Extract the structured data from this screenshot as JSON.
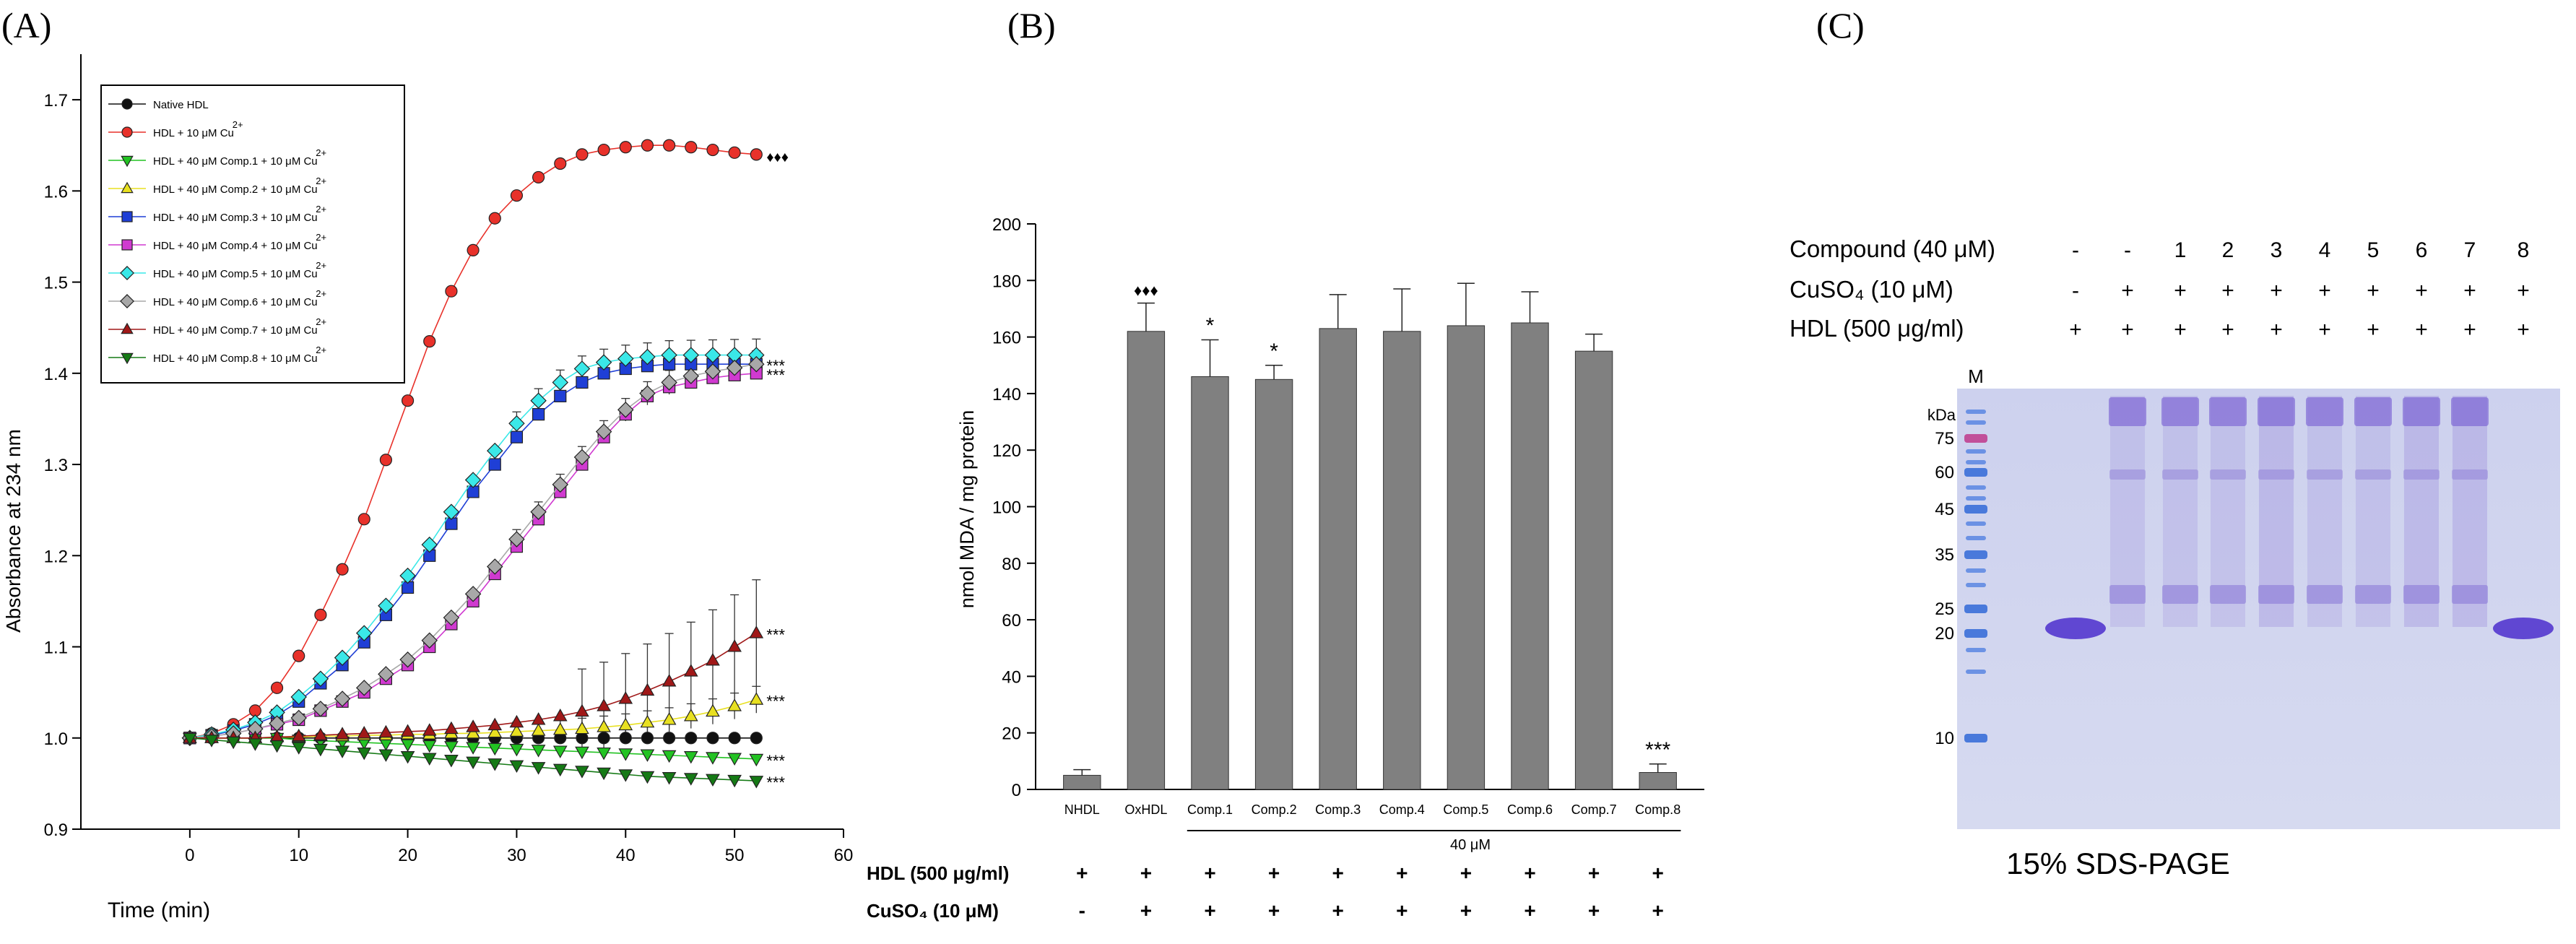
{
  "panels": [
    {
      "label": "(A)"
    },
    {
      "label": "(B)"
    },
    {
      "label": "(C)"
    }
  ],
  "chart_data": [
    {
      "type": "line",
      "panel": "(A)",
      "xlabel": "Time (min)",
      "ylabel": "Absorbance at 234 nm",
      "xlim": [
        -10,
        60
      ],
      "ylim": [
        0.9,
        1.75
      ],
      "xticks": [
        0,
        10,
        20,
        30,
        40,
        50,
        60
      ],
      "yticks": [
        0.9,
        1.0,
        1.1,
        1.2,
        1.3,
        1.4,
        1.5,
        1.6,
        1.7
      ],
      "x": [
        0,
        2,
        4,
        6,
        8,
        10,
        12,
        14,
        16,
        18,
        20,
        22,
        24,
        26,
        28,
        30,
        32,
        34,
        36,
        38,
        40,
        42,
        44,
        46,
        48,
        50,
        52
      ],
      "legend_position": "top-left",
      "series": [
        {
          "name": "Native HDL",
          "legend_sup": "",
          "color": "#111111",
          "marker": "circle",
          "values": [
            1.0,
            1.0,
            1.0,
            1.0,
            1.0,
            1.0,
            1.0,
            1.0,
            1.0,
            1.0,
            1.0,
            1.0,
            1.0,
            1.0,
            1.0,
            1.0,
            1.0,
            1.0,
            1.0,
            1.0,
            1.0,
            1.0,
            1.0,
            1.0,
            1.0,
            1.0,
            1.0
          ]
        },
        {
          "name": "HDL + 10 μM Cu",
          "legend_sup": "2+",
          "color": "#e8312a",
          "marker": "circle",
          "end_label": "♦♦♦",
          "values": [
            1.0,
            1.005,
            1.015,
            1.03,
            1.055,
            1.09,
            1.135,
            1.185,
            1.24,
            1.305,
            1.37,
            1.435,
            1.49,
            1.535,
            1.57,
            1.595,
            1.615,
            1.63,
            1.64,
            1.645,
            1.648,
            1.65,
            1.65,
            1.648,
            1.645,
            1.642,
            1.64
          ]
        },
        {
          "name": "HDL + 40 μM Comp.1 + 10 μM Cu",
          "legend_sup": "2+",
          "color": "#22c322",
          "marker": "triangle-down",
          "end_label": "***",
          "values": [
            1.0,
            1.0,
            1.0,
            1.0,
            1.0,
            0.998,
            0.997,
            0.996,
            0.995,
            0.994,
            0.993,
            0.992,
            0.991,
            0.99,
            0.989,
            0.988,
            0.987,
            0.986,
            0.985,
            0.984,
            0.983,
            0.982,
            0.981,
            0.98,
            0.979,
            0.978,
            0.977
          ]
        },
        {
          "name": "HDL + 40 μM Comp.2 + 10 μM Cu",
          "legend_sup": "2+",
          "color": "#e8e020",
          "marker": "triangle",
          "end_label": "***",
          "values": [
            1.0,
            1.0,
            1.0,
            1.0,
            1.001,
            1.001,
            1.002,
            1.002,
            1.003,
            1.003,
            1.004,
            1.004,
            1.005,
            1.005,
            1.006,
            1.007,
            1.008,
            1.009,
            1.01,
            1.012,
            1.014,
            1.017,
            1.02,
            1.024,
            1.029,
            1.035,
            1.042
          ]
        },
        {
          "name": "HDL + 40 μM Comp.3 + 10 μM Cu",
          "legend_sup": "2+",
          "color": "#1f3fd6",
          "marker": "square",
          "end_label": "***",
          "values": [
            1.0,
            1.003,
            1.008,
            1.015,
            1.025,
            1.04,
            1.06,
            1.08,
            1.105,
            1.135,
            1.165,
            1.2,
            1.235,
            1.27,
            1.3,
            1.33,
            1.355,
            1.375,
            1.39,
            1.4,
            1.405,
            1.408,
            1.41,
            1.41,
            1.41,
            1.41,
            1.41
          ]
        },
        {
          "name": "HDL + 40 μM Comp.4 + 10 μM Cu",
          "legend_sup": "2+",
          "color": "#d03ad0",
          "marker": "square",
          "end_label": "***",
          "values": [
            1.0,
            1.002,
            1.005,
            1.01,
            1.015,
            1.02,
            1.03,
            1.04,
            1.05,
            1.065,
            1.08,
            1.1,
            1.125,
            1.15,
            1.18,
            1.21,
            1.24,
            1.27,
            1.3,
            1.33,
            1.355,
            1.375,
            1.385,
            1.39,
            1.395,
            1.398,
            1.4
          ]
        },
        {
          "name": "HDL + 40 μM Comp.5 + 10 μM Cu",
          "legend_sup": "2+",
          "color": "#3ae8e8",
          "marker": "diamond",
          "end_label": "",
          "values": [
            1.0,
            1.004,
            1.009,
            1.017,
            1.028,
            1.045,
            1.065,
            1.088,
            1.115,
            1.145,
            1.178,
            1.212,
            1.248,
            1.283,
            1.315,
            1.345,
            1.37,
            1.39,
            1.405,
            1.412,
            1.416,
            1.418,
            1.42,
            1.42,
            1.42,
            1.42,
            1.42
          ]
        },
        {
          "name": "HDL + 40 μM Comp.6 + 10 μM Cu",
          "legend_sup": "2+",
          "color": "#a8a8a8",
          "marker": "diamond",
          "end_label": "",
          "values": [
            1.0,
            1.002,
            1.005,
            1.01,
            1.016,
            1.022,
            1.032,
            1.043,
            1.055,
            1.07,
            1.086,
            1.107,
            1.132,
            1.158,
            1.188,
            1.218,
            1.248,
            1.278,
            1.308,
            1.336,
            1.36,
            1.378,
            1.39,
            1.397,
            1.402,
            1.406,
            1.41
          ]
        },
        {
          "name": "HDL + 40 μM Comp.7 + 10 μM Cu",
          "legend_sup": "2+",
          "color": "#a01818",
          "marker": "triangle",
          "end_label": "***",
          "values": [
            1.0,
            1.0,
            1.0,
            1.0,
            1.001,
            1.002,
            1.003,
            1.004,
            1.005,
            1.006,
            1.007,
            1.008,
            1.01,
            1.012,
            1.014,
            1.017,
            1.02,
            1.024,
            1.029,
            1.035,
            1.043,
            1.052,
            1.062,
            1.073,
            1.085,
            1.1,
            1.115
          ]
        },
        {
          "name": "HDL + 40 μM Comp.8 + 10 μM Cu",
          "legend_sup": "2+",
          "color": "#157a15",
          "marker": "triangle-down",
          "end_label": "***",
          "values": [
            1.0,
            0.998,
            0.996,
            0.994,
            0.992,
            0.99,
            0.988,
            0.986,
            0.984,
            0.982,
            0.98,
            0.978,
            0.976,
            0.974,
            0.972,
            0.97,
            0.968,
            0.966,
            0.964,
            0.962,
            0.96,
            0.958,
            0.957,
            0.956,
            0.955,
            0.954,
            0.953
          ]
        }
      ]
    },
    {
      "type": "bar",
      "panel": "(B)",
      "ylabel": "nmol MDA / mg protein",
      "ylim": [
        0,
        200
      ],
      "yticks": [
        0,
        20,
        40,
        60,
        80,
        100,
        120,
        140,
        160,
        180,
        200
      ],
      "categories": [
        "NHDL",
        "OxHDL",
        "Comp.1",
        "Comp.2",
        "Comp.3",
        "Comp.4",
        "Comp.5",
        "Comp.6",
        "Comp.7",
        "Comp.8"
      ],
      "values": [
        5,
        162,
        146,
        145,
        163,
        162,
        164,
        165,
        155,
        6
      ],
      "errors": [
        2,
        10,
        13,
        5,
        12,
        15,
        15,
        11,
        6,
        3
      ],
      "annotations": [
        "",
        "♦♦♦",
        "*",
        "*",
        "",
        "",
        "",
        "",
        "",
        "***"
      ],
      "bar_color": "#808080",
      "bracket_label": "40 μM",
      "treatment_rows": [
        {
          "label": "HDL (500 μg/ml)",
          "marks": [
            "+",
            "+",
            "+",
            "+",
            "+",
            "+",
            "+",
            "+",
            "+",
            "+"
          ]
        },
        {
          "label": "CuSO₄ (10 μM)",
          "marks": [
            "-",
            "+",
            "+",
            "+",
            "+",
            "+",
            "+",
            "+",
            "+",
            "+"
          ]
        }
      ]
    }
  ],
  "gel": {
    "panel": "(C)",
    "rows": [
      {
        "label": "Compound (40 μM)",
        "marks": [
          "-",
          "-",
          "1",
          "2",
          "3",
          "4",
          "5",
          "6",
          "7",
          "8"
        ]
      },
      {
        "label": "CuSO₄ (10 μM)",
        "marks": [
          "-",
          "+",
          "+",
          "+",
          "+",
          "+",
          "+",
          "+",
          "+",
          "+"
        ]
      },
      {
        "label": "HDL (500 μg/ml)",
        "marks": [
          "+",
          "+",
          "+",
          "+",
          "+",
          "+",
          "+",
          "+",
          "+",
          "+"
        ]
      }
    ],
    "marker_lane_label": "M",
    "unit_label": "kDa",
    "marker_kda": [
      75,
      60,
      45,
      35,
      25,
      20,
      10
    ],
    "caption": "15% SDS-PAGE",
    "background_color": "#d6daf0",
    "band_color": "#5a3fd0"
  }
}
